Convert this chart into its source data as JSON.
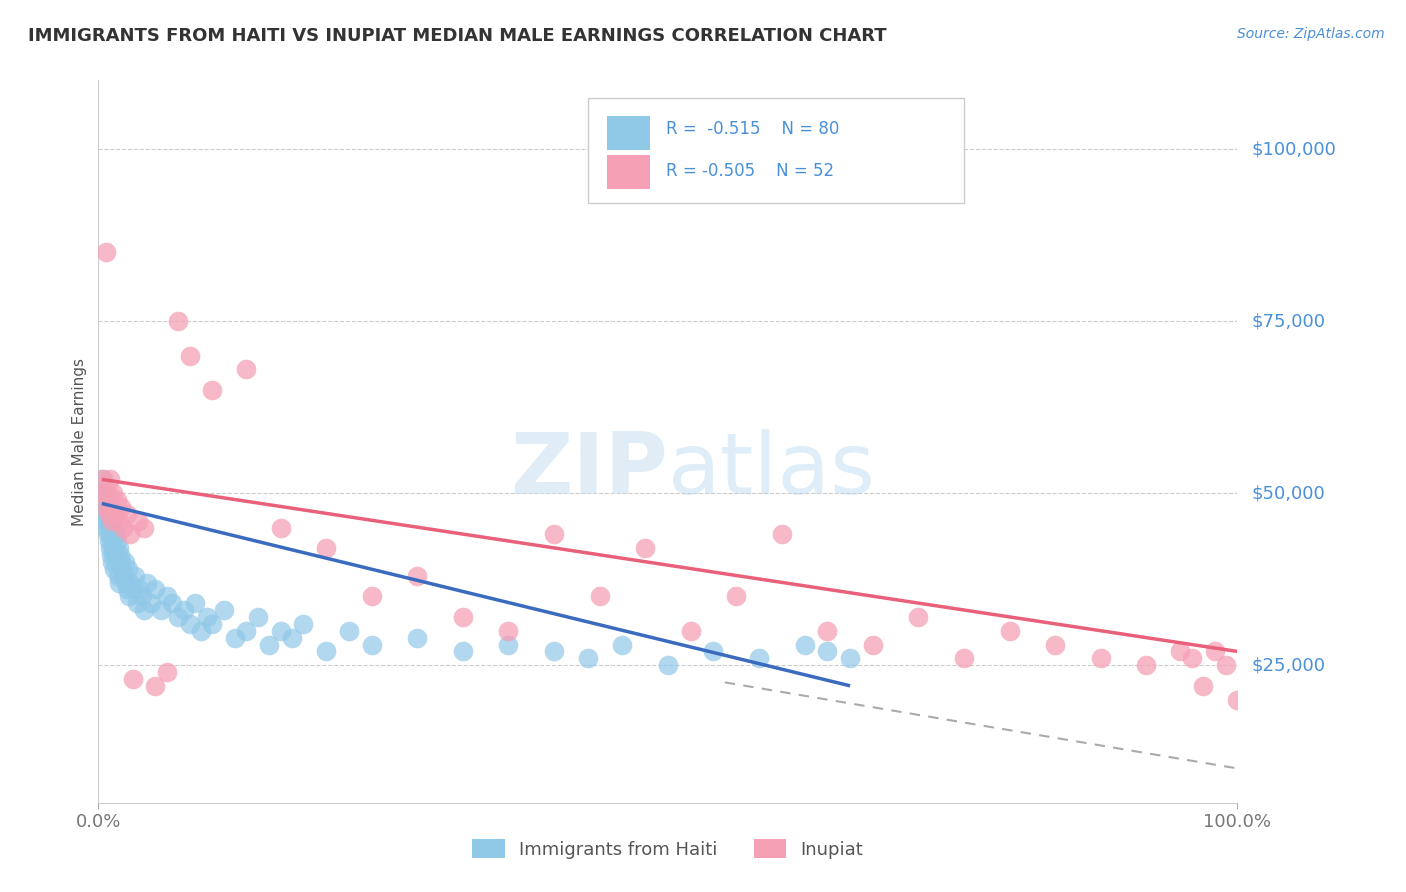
{
  "title": "IMMIGRANTS FROM HAITI VS INUPIAT MEDIAN MALE EARNINGS CORRELATION CHART",
  "source": "Source: ZipAtlas.com",
  "ylabel": "Median Male Earnings",
  "r_haiti": -0.515,
  "n_haiti": 80,
  "r_inupiat": -0.505,
  "n_inupiat": 52,
  "color_haiti": "#90c8e8",
  "color_inupiat": "#f5a0b5",
  "color_haiti_line": "#3a6bbf",
  "color_inupiat_line": "#e8607a",
  "color_title": "#333333",
  "color_source": "#4a90d9",
  "color_ylabel": "#555555",
  "color_yaxis_labels": "#4a90d9",
  "color_xaxis_labels": "#777777",
  "background_color": "#ffffff",
  "grid_color": "#cccccc",
  "watermark": "ZIPatlas",
  "ytick_labels": [
    "$25,000",
    "$50,000",
    "$75,000",
    "$100,000"
  ],
  "ytick_values": [
    25000,
    50000,
    75000,
    100000
  ],
  "xlim": [
    0.0,
    1.0
  ],
  "ylim": [
    5000,
    110000
  ],
  "haiti_x": [
    0.003,
    0.004,
    0.005,
    0.005,
    0.006,
    0.006,
    0.007,
    0.007,
    0.008,
    0.008,
    0.009,
    0.009,
    0.01,
    0.01,
    0.011,
    0.011,
    0.012,
    0.012,
    0.013,
    0.013,
    0.014,
    0.015,
    0.015,
    0.016,
    0.016,
    0.017,
    0.018,
    0.018,
    0.019,
    0.02,
    0.021,
    0.022,
    0.023,
    0.024,
    0.025,
    0.026,
    0.027,
    0.028,
    0.03,
    0.032,
    0.034,
    0.036,
    0.038,
    0.04,
    0.043,
    0.046,
    0.05,
    0.055,
    0.06,
    0.065,
    0.07,
    0.075,
    0.08,
    0.085,
    0.09,
    0.095,
    0.1,
    0.11,
    0.12,
    0.13,
    0.14,
    0.15,
    0.16,
    0.17,
    0.18,
    0.2,
    0.22,
    0.24,
    0.28,
    0.32,
    0.36,
    0.4,
    0.43,
    0.46,
    0.5,
    0.54,
    0.58,
    0.62,
    0.64,
    0.66
  ],
  "haiti_y": [
    48000,
    52000,
    47000,
    50000,
    46000,
    49000,
    45000,
    48000,
    44000,
    47000,
    43000,
    46000,
    42000,
    45000,
    41000,
    44000,
    40000,
    43000,
    42000,
    45000,
    39000,
    41000,
    44000,
    40000,
    43000,
    38000,
    42000,
    37000,
    41000,
    40000,
    39000,
    38000,
    40000,
    37000,
    36000,
    39000,
    35000,
    37000,
    36000,
    38000,
    34000,
    36000,
    35000,
    33000,
    37000,
    34000,
    36000,
    33000,
    35000,
    34000,
    32000,
    33000,
    31000,
    34000,
    30000,
    32000,
    31000,
    33000,
    29000,
    30000,
    32000,
    28000,
    30000,
    29000,
    31000,
    27000,
    30000,
    28000,
    29000,
    27000,
    28000,
    27000,
    26000,
    28000,
    25000,
    27000,
    26000,
    28000,
    27000,
    26000
  ],
  "inupiat_x": [
    0.003,
    0.005,
    0.006,
    0.007,
    0.008,
    0.009,
    0.01,
    0.011,
    0.012,
    0.013,
    0.015,
    0.016,
    0.018,
    0.02,
    0.022,
    0.025,
    0.028,
    0.03,
    0.035,
    0.04,
    0.05,
    0.06,
    0.07,
    0.08,
    0.1,
    0.13,
    0.16,
    0.2,
    0.24,
    0.28,
    0.32,
    0.36,
    0.4,
    0.44,
    0.48,
    0.52,
    0.56,
    0.6,
    0.64,
    0.68,
    0.72,
    0.76,
    0.8,
    0.84,
    0.88,
    0.92,
    0.96,
    0.98,
    0.99,
    1.0,
    0.95,
    0.97
  ],
  "inupiat_y": [
    52000,
    50000,
    48000,
    85000,
    50000,
    47000,
    52000,
    48000,
    46000,
    50000,
    47000,
    49000,
    46000,
    48000,
    45000,
    47000,
    44000,
    23000,
    46000,
    45000,
    22000,
    24000,
    75000,
    70000,
    65000,
    68000,
    45000,
    42000,
    35000,
    38000,
    32000,
    30000,
    44000,
    35000,
    42000,
    30000,
    35000,
    44000,
    30000,
    28000,
    32000,
    26000,
    30000,
    28000,
    26000,
    25000,
    26000,
    27000,
    25000,
    20000,
    27000,
    22000
  ],
  "haiti_line_x": [
    0.003,
    0.66
  ],
  "haiti_line_y": [
    48500,
    22000
  ],
  "inupiat_line_x": [
    0.003,
    1.0
  ],
  "inupiat_line_y": [
    52000,
    27000
  ],
  "dash_line_x": [
    0.55,
    1.0
  ],
  "dash_line_y": [
    22500,
    10000
  ]
}
